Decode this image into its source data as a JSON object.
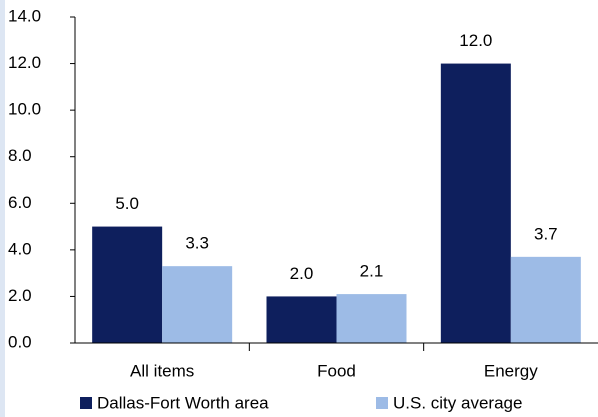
{
  "chart_data": {
    "type": "bar",
    "categories": [
      "All items",
      "Food",
      "Energy"
    ],
    "series": [
      {
        "name": "Dallas-Fort Worth area",
        "color": "#0e1f5d",
        "values": [
          5.0,
          2.0,
          12.0
        ],
        "value_labels": [
          "5.0",
          "2.0",
          "12.0"
        ]
      },
      {
        "name": "U.S. city average",
        "color": "#9dbbe6",
        "values": [
          3.3,
          2.1,
          3.7
        ],
        "value_labels": [
          "3.3",
          "2.1",
          "3.7"
        ]
      }
    ],
    "ylim": [
      0,
      14
    ],
    "yticks": [
      {
        "value": 0,
        "label": "0.0"
      },
      {
        "value": 2,
        "label": "2.0"
      },
      {
        "value": 4,
        "label": "4.0"
      },
      {
        "value": 6,
        "label": "6.0"
      },
      {
        "value": 8,
        "label": "8.0"
      },
      {
        "value": 10,
        "label": "10.0"
      },
      {
        "value": 12,
        "label": "12.0"
      },
      {
        "value": 14,
        "label": "14.0"
      }
    ],
    "grid": false,
    "legend": "bottom"
  }
}
